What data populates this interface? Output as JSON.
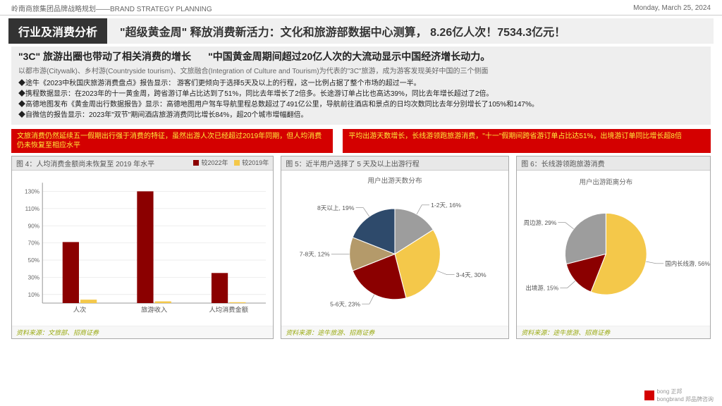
{
  "top": {
    "left": "岭南商旅集团品牌战略规划——BRAND STRATEGY PLANNING",
    "right": "Monday,  March 25, 2024"
  },
  "section": {
    "tag": "行业及消费分析",
    "headline": "\"超级黄金周\" 释放消费新活力：文化和旅游部数据中心测算， 8.26亿人次！7534.3亿元！"
  },
  "sub": {
    "t1": "\"3C\" 旅游出圈也带动了相关消费的增长",
    "t2": "\"中国黄金周期间超过20亿人次的大流动显示中国经济增长动力。",
    "cap": "以都市游(Citywalk)、乡村游(Countryside tourism)、文旅融合(Integration of Culture and Tourism)为代表的\"3C\"旅游，成为游客发现美好中国的三个侧面",
    "b1": "◆途牛《2023中秋国庆旅游消费盘点》报告显示： 游客们更倾向于选择5天及以上的行程，这一比例占据了整个市场的超过一半。",
    "b2": "◆携程数据显示：在2023年的十一黄金周，跨省游订单占比达到了51%，同比去年增长了2倍多。长途游订单占比也高达39%，同比去年增长超过了2倍。",
    "b3": "◆高德地图发布《黄金周出行数据报告》显示：高德地图用户驾车导航里程总数超过了491亿公里，导航前往酒店和景点的日均次数同比去年分别增长了105%和147%。",
    "b4": "◆自微信的报告显示：2023年\"双节\"期间酒店旅游消费同比增长84%，超20个城市增幅翻倍。"
  },
  "red": {
    "a": "文旅消费仍然延续五一假期出行强于消费的特征，虽然出游人次已经超过2019年同期，但人均消费仍未恢复至相应水平",
    "b": "平均出游天数增长，长线游领跑旅游消费，\"十一\"假期间跨省游订单占比达51%，出境游订单同比增长超8倍"
  },
  "chart4": {
    "title": "图 4：人均消费金额尚未恢复至 2019 年水平",
    "legend": [
      {
        "label": "较2022年",
        "color": "#8b0000"
      },
      {
        "label": "较2019年",
        "color": "#f4c84a"
      }
    ],
    "y_ticks": [
      "10%",
      "30%",
      "50%",
      "70%",
      "90%",
      "110%",
      "130%"
    ],
    "y_min": 0,
    "y_max": 140,
    "categories": [
      "人次",
      "旅游收入",
      "人均消费金额"
    ],
    "series": [
      {
        "color": "#8b0000",
        "values": [
          71,
          130,
          35
        ]
      },
      {
        "color": "#f4c84a",
        "values": [
          4,
          2,
          1
        ]
      }
    ],
    "source": "资料来源：文旅部、招商证券"
  },
  "chart5": {
    "title": "图 5：近半用户选择了 5 天及以上出游行程",
    "subtitle": "用户出游天数分布",
    "slices": [
      {
        "label": "1-2天, 16%",
        "value": 16,
        "color": "#9d9d9d"
      },
      {
        "label": "3-4天, 30%",
        "value": 30,
        "color": "#f4c84a"
      },
      {
        "label": "5-6天, 23%",
        "value": 23,
        "color": "#8b0000"
      },
      {
        "label": "7-8天, 12%",
        "value": 12,
        "color": "#b49a6a"
      },
      {
        "label": "8天以上, 19%",
        "value": 19,
        "color": "#2e4a6b"
      }
    ],
    "source": "资料来源：途牛旅游、招商证券"
  },
  "chart6": {
    "title": "图 6：长线游领跑旅游消费",
    "subtitle": "用户出游距离分布",
    "slices": [
      {
        "label": "国内长线游, 56%",
        "value": 56,
        "color": "#f4c84a"
      },
      {
        "label": "出境游, 15%",
        "value": 15,
        "color": "#8b0000"
      },
      {
        "label": "周边游, 29%",
        "value": 29,
        "color": "#9d9d9d"
      }
    ],
    "source": "资料来源：途牛旅游、招商证券"
  },
  "footer": {
    "brand": "bongbrand  邦品牌咨询",
    "small": "bong 正邦"
  },
  "colors": {
    "grid": "#dddddd"
  }
}
